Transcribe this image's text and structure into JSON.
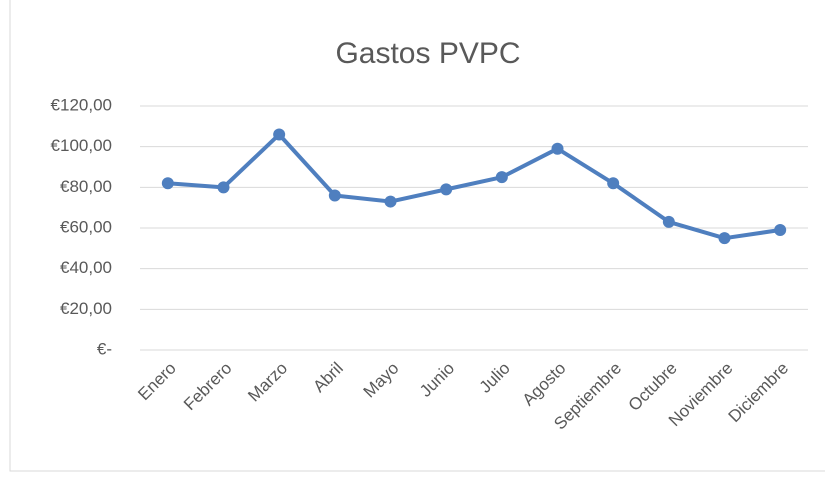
{
  "chart_data": {
    "type": "line",
    "title": "Gastos PVPC",
    "categories": [
      "Enero",
      "Febrero",
      "Marzo",
      "Abril",
      "Mayo",
      "Junio",
      "Julio",
      "Agosto",
      "Septiembre",
      "Octubre",
      "Noviembre",
      "Diciembre"
    ],
    "series": [
      {
        "name": "Gastos PVPC",
        "color": "#4f7fbf",
        "values": [
          82,
          80,
          106,
          76,
          73,
          79,
          85,
          99,
          82,
          63,
          55,
          59
        ]
      }
    ],
    "ylim": [
      0,
      120
    ],
    "yticks": [
      {
        "value": 0,
        "label": "€-"
      },
      {
        "value": 20,
        "label": "€20,00"
      },
      {
        "value": 40,
        "label": "€40,00"
      },
      {
        "value": 60,
        "label": "€60,00"
      },
      {
        "value": 80,
        "label": "€80,00"
      },
      {
        "value": 100,
        "label": "€100,00"
      },
      {
        "value": 120,
        "label": "€120,00"
      }
    ],
    "grid": true
  }
}
